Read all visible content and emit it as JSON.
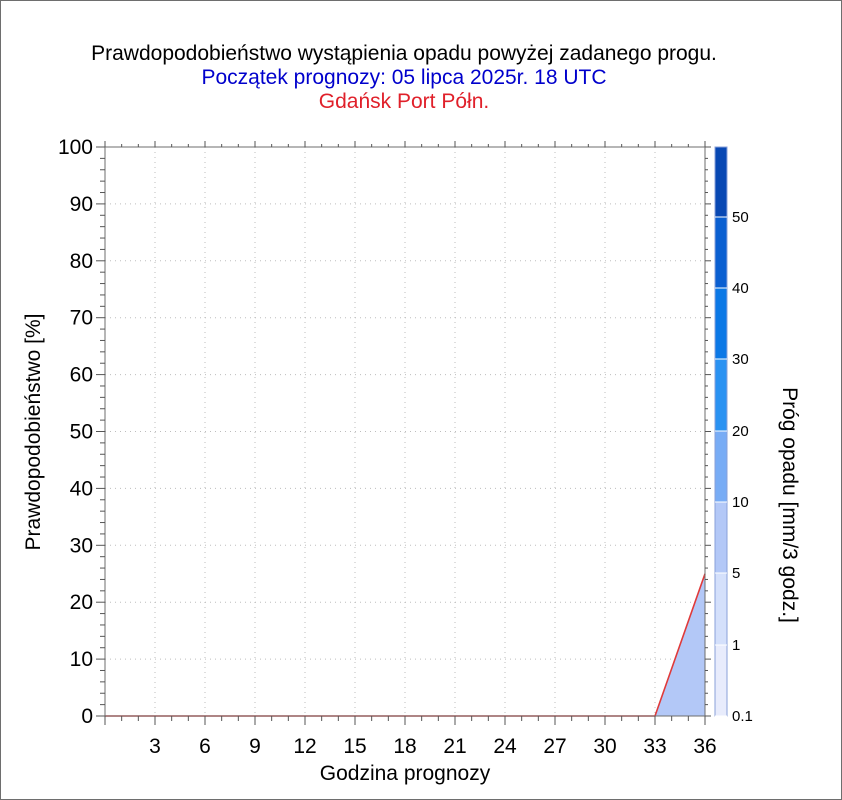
{
  "titles": {
    "line1": "Prawdopodobieństwo wystąpienia opadu powyżej zadanego progu.",
    "line2": "Początek prognozy: 05 lipca 2025r. 18 UTC",
    "line3": "Gdańsk Port Półn."
  },
  "colors": {
    "title_main": "#000000",
    "title_start": "#0000cc",
    "title_station": "#e0202a",
    "line": "#e03a3a",
    "fill": "#b3c8f7"
  },
  "chart_data": {
    "type": "area",
    "xlabel": "Godzina prognozy",
    "ylabel": "Prawdopodobieństwo [%]",
    "xlim": [
      0,
      36
    ],
    "ylim": [
      0,
      100
    ],
    "x_ticks": [
      3,
      6,
      9,
      12,
      15,
      18,
      21,
      24,
      27,
      30,
      33,
      36
    ],
    "y_ticks": [
      0,
      10,
      20,
      30,
      40,
      50,
      60,
      70,
      80,
      90,
      100
    ],
    "grid": true,
    "series": [
      {
        "threshold": "0.1",
        "x": [
          0,
          3,
          6,
          9,
          12,
          15,
          18,
          21,
          24,
          27,
          30,
          33,
          36
        ],
        "values": [
          0,
          0,
          0,
          0,
          0,
          0,
          0,
          0,
          0,
          0,
          0,
          0,
          25
        ]
      }
    ],
    "colorbar": {
      "label": "Próg opadu [mm/3 godz.]",
      "levels": [
        "0.1",
        "1",
        "5",
        "10",
        "20",
        "30",
        "40",
        "50"
      ],
      "colors": [
        "#e8ecfc",
        "#d4e0fb",
        "#b3c8f7",
        "#78acf5",
        "#2a92f2",
        "#0b78e6",
        "#0a5fd1",
        "#0848b3",
        "#063396"
      ]
    }
  }
}
